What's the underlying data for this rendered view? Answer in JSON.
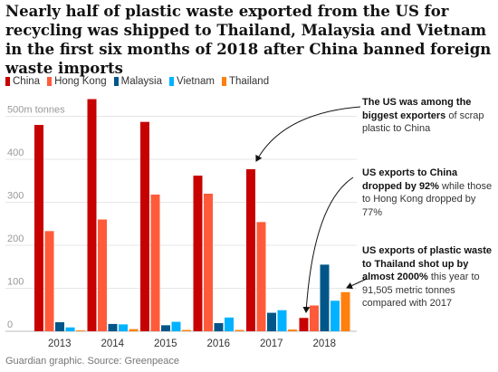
{
  "title": "Nearly half of plastic waste exported from the US for recycling was shipped to Thailand, Malaysia and Vietnam in the first six months of 2018 after China banned foreign waste imports",
  "source": "Guardian graphic. Source: Greenpeace",
  "annotations": [
    {
      "bold": "The US was among the biggest exporters",
      "rest": " of scrap plastic to China"
    },
    {
      "bold": "US exports to China dropped by 92%",
      "rest": " while those to Hong Kong dropped by 77%"
    },
    {
      "bold": "US exports of plastic waste to Thailand shot up by almost 2000%",
      "rest": " this year to 91,505 metric tonnes compared with 2017"
    }
  ],
  "chart_data": {
    "type": "bar",
    "title": "",
    "categories": [
      "2013",
      "2014",
      "2015",
      "2016",
      "2017",
      "2018"
    ],
    "ylabel": "",
    "y_unit_label": "500m tonnes",
    "y_ticks": [
      "0",
      "100",
      "200",
      "300",
      "400",
      "500m tonnes"
    ],
    "ylim": [
      0,
      560
    ],
    "grid": true,
    "legend_position": "top-left",
    "series": [
      {
        "name": "China",
        "color": "#c70000",
        "values": [
          480,
          540,
          487,
          362,
          377,
          31
        ]
      },
      {
        "name": "Hong Kong",
        "color": "#ff5b3a",
        "values": [
          233,
          260,
          318,
          320,
          254,
          60
        ]
      },
      {
        "name": "Malaysia",
        "color": "#005689",
        "values": [
          21,
          17,
          14,
          19,
          43,
          155
        ]
      },
      {
        "name": "Vietnam",
        "color": "#00b2ff",
        "values": [
          9,
          16,
          22,
          32,
          49,
          71
        ]
      },
      {
        "name": "Thailand",
        "color": "#ff7f0f",
        "values": [
          2,
          5,
          3,
          3,
          4,
          91
        ]
      }
    ]
  }
}
